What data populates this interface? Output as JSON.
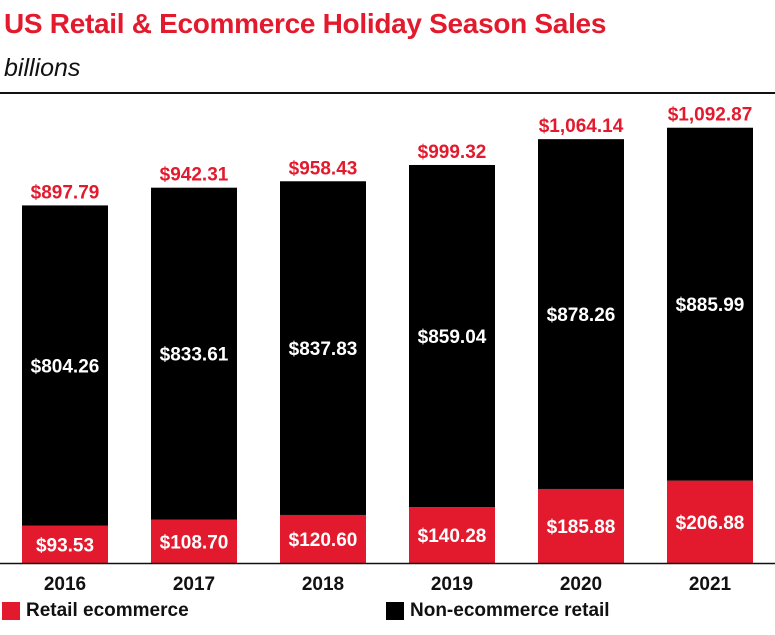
{
  "chart_data": {
    "type": "bar",
    "stacked": true,
    "title": "US Retail & Ecommerce Holiday Season Sales",
    "subtitle": "billions",
    "categories": [
      "2016",
      "2017",
      "2018",
      "2019",
      "2020",
      "2021"
    ],
    "series": [
      {
        "name": "Retail ecommerce",
        "color": "#e31a2d",
        "values": [
          93.53,
          108.7,
          120.6,
          140.28,
          185.88,
          206.88
        ],
        "labels": [
          "$93.53",
          "$108.70",
          "$120.60",
          "$140.28",
          "$185.88",
          "$206.88"
        ]
      },
      {
        "name": "Non-ecommerce retail",
        "color": "#000000",
        "values": [
          804.26,
          833.61,
          837.83,
          859.04,
          878.26,
          885.99
        ],
        "labels": [
          "$804.26",
          "$833.61",
          "$837.83",
          "$859.04",
          "$878.26",
          "$885.99"
        ]
      }
    ],
    "totals": [
      897.79,
      942.31,
      958.43,
      999.32,
      1064.14,
      1092.87
    ],
    "total_labels": [
      "$897.79",
      "$942.31",
      "$958.43",
      "$999.32",
      "$1,064.14",
      "$1,092.87"
    ],
    "ylim": [
      0,
      1170
    ],
    "legend_position": "bottom",
    "grid": false
  }
}
